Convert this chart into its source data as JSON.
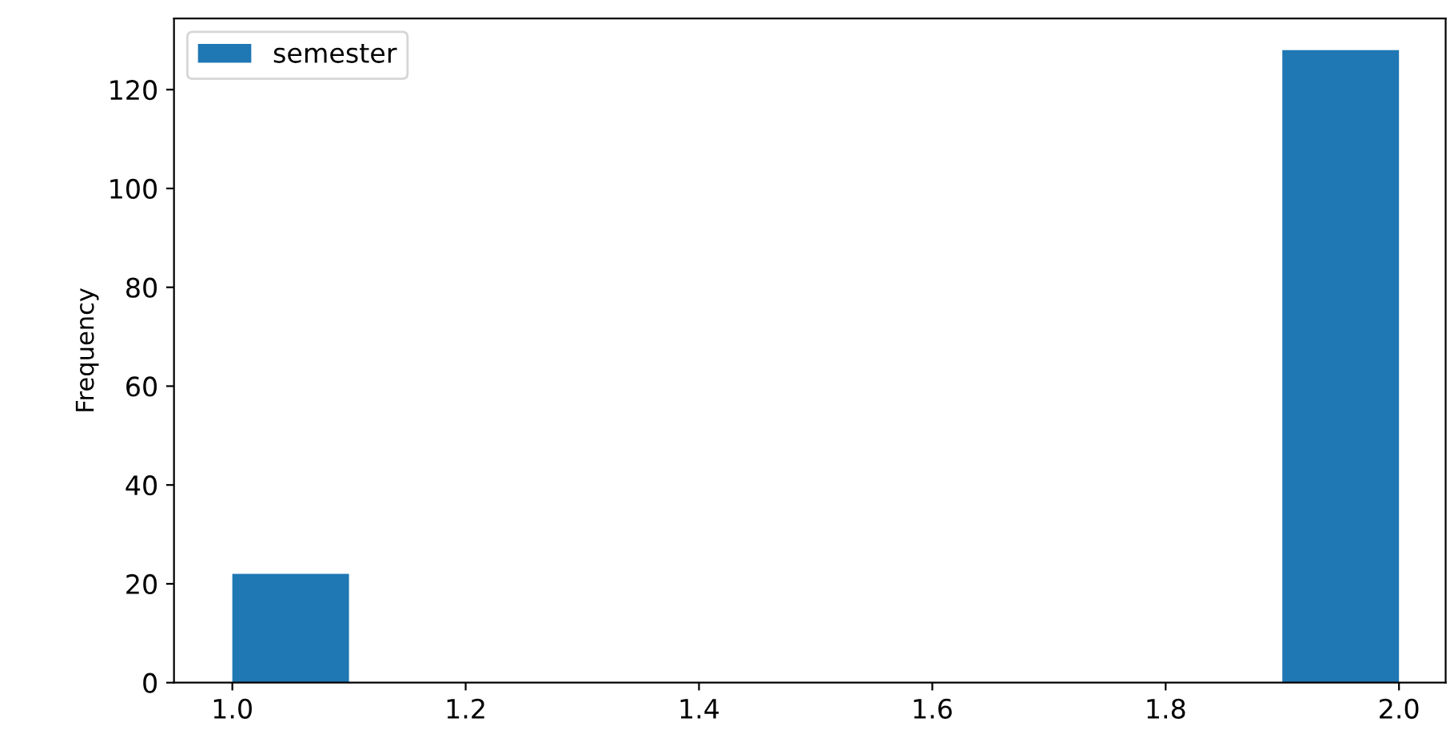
{
  "chart_data": {
    "type": "histogram",
    "ylabel": "Frequency",
    "bins": [
      1.0,
      1.1,
      1.2,
      1.3,
      1.4,
      1.5,
      1.6,
      1.7,
      1.8,
      1.9,
      2.0
    ],
    "series": [
      {
        "name": "semester",
        "color": "#1f77b4",
        "values": [
          22,
          0,
          0,
          0,
          0,
          0,
          0,
          0,
          0,
          128
        ]
      }
    ],
    "xlim": [
      0.95,
      2.04
    ],
    "xticks": [
      {
        "value": 1.0,
        "label": "1.0"
      },
      {
        "value": 1.2,
        "label": "1.2"
      },
      {
        "value": 1.4,
        "label": "1.4"
      },
      {
        "value": 1.6,
        "label": "1.6"
      },
      {
        "value": 1.8,
        "label": "1.8"
      },
      {
        "value": 2.0,
        "label": "2.0"
      }
    ],
    "ylim": [
      0,
      134.4
    ],
    "yticks": [
      0,
      20,
      40,
      60,
      80,
      100,
      120
    ],
    "grid": false,
    "legend": "top left"
  }
}
